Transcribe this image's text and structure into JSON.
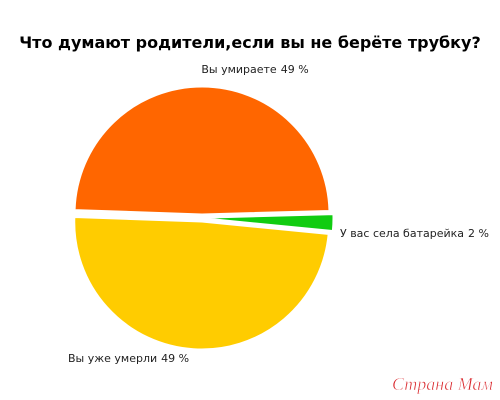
{
  "chart_data": {
    "type": "pie",
    "title": "Что думают родители,если вы не берёте трубку?",
    "categories": [
      "Вы умираете",
      "У вас села батарейка",
      "Вы уже умерли"
    ],
    "values": [
      49,
      2,
      49
    ],
    "value_labels": [
      "49 %",
      "2 %",
      "49 %"
    ],
    "colors": [
      "#ff6600",
      "#11cc11",
      "#ffcc00"
    ]
  },
  "watermark": "Страна Мам"
}
